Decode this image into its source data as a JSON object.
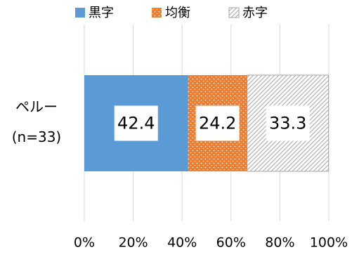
{
  "chart_data": {
    "type": "stacked_barh",
    "categories": [
      "ペルー\n(n=33)"
    ],
    "series": [
      {
        "name": "黒字",
        "color": "#5b9bd5",
        "pattern": "solid",
        "values": [
          42.4
        ]
      },
      {
        "name": "均衡",
        "color": "#ed7d31",
        "pattern": "dots",
        "values": [
          24.2
        ]
      },
      {
        "name": "赤字",
        "color": "#a6a6a6",
        "pattern": "hatch",
        "values": [
          33.3
        ]
      }
    ],
    "xlim": [
      0,
      100
    ],
    "xticks": [
      {
        "value": 0,
        "label": "0%"
      },
      {
        "value": 20,
        "label": "20%"
      },
      {
        "value": 40,
        "label": "40%"
      },
      {
        "value": 60,
        "label": "60%"
      },
      {
        "value": 80,
        "label": "80%"
      },
      {
        "value": 100,
        "label": "100%"
      }
    ],
    "grid": true,
    "legend": "top"
  }
}
